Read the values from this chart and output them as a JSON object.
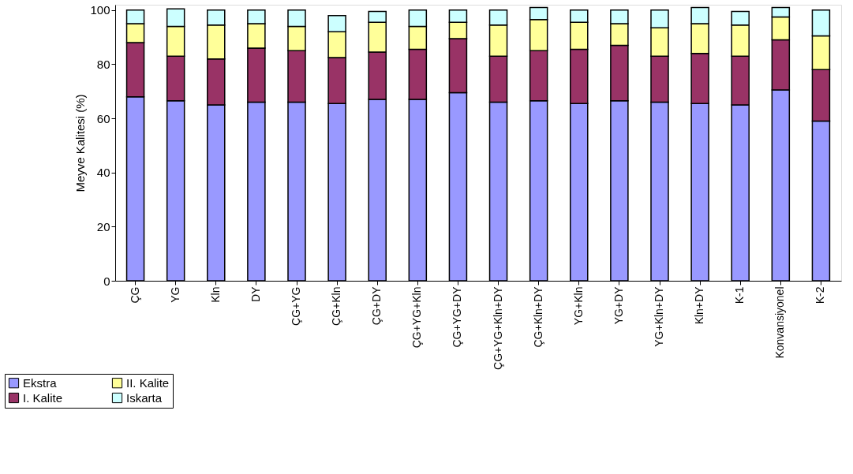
{
  "chart_data": {
    "type": "bar",
    "stacked": true,
    "ylabel": "Meyve Kalitesi (%)",
    "categories": [
      "ÇG",
      "YG",
      "Kln",
      "DY",
      "ÇG+YG",
      "ÇG+Kln",
      "ÇG+DY",
      "ÇG+YG+Kln",
      "ÇG+YG+DY",
      "ÇG+YG+Kln+DY",
      "ÇG+Kln+DY",
      "YG+Kln",
      "YG+DY",
      "YG+Kln+DY",
      "Kln+DY",
      "K-1",
      "Konvansiyonel",
      "K-2"
    ],
    "series": [
      {
        "name": "Ekstra",
        "color": "#9999ff",
        "values": [
          68,
          66.5,
          65,
          66,
          66,
          65.5,
          67,
          67,
          69.5,
          66,
          66.5,
          65.5,
          66.5,
          66,
          65.5,
          65,
          70.5,
          59
        ]
      },
      {
        "name": "I. Kalite",
        "color": "#993366",
        "values": [
          20,
          16.5,
          17,
          20,
          19,
          17,
          17.5,
          18.5,
          20,
          17,
          18.5,
          20,
          20.5,
          17,
          18.5,
          18,
          18.5,
          19
        ]
      },
      {
        "name": "II. Kalite",
        "color": "#ffff99",
        "values": [
          7,
          11,
          12.5,
          9,
          9,
          9.5,
          11,
          8.5,
          6,
          11.5,
          11.5,
          10,
          8,
          10.5,
          11,
          11.5,
          8.5,
          12.5
        ]
      },
      {
        "name": "Iskarta",
        "color": "#ccffff",
        "values": [
          5,
          6.5,
          5.5,
          5,
          6,
          6,
          4,
          6,
          4.5,
          5.5,
          4.5,
          4.5,
          5,
          6.5,
          6,
          5,
          3.5,
          9.5
        ]
      }
    ],
    "ylim": [
      0,
      102
    ],
    "yticks": [
      0,
      20,
      40,
      60,
      80,
      100
    ],
    "grid": false,
    "legend": "bottom left"
  }
}
